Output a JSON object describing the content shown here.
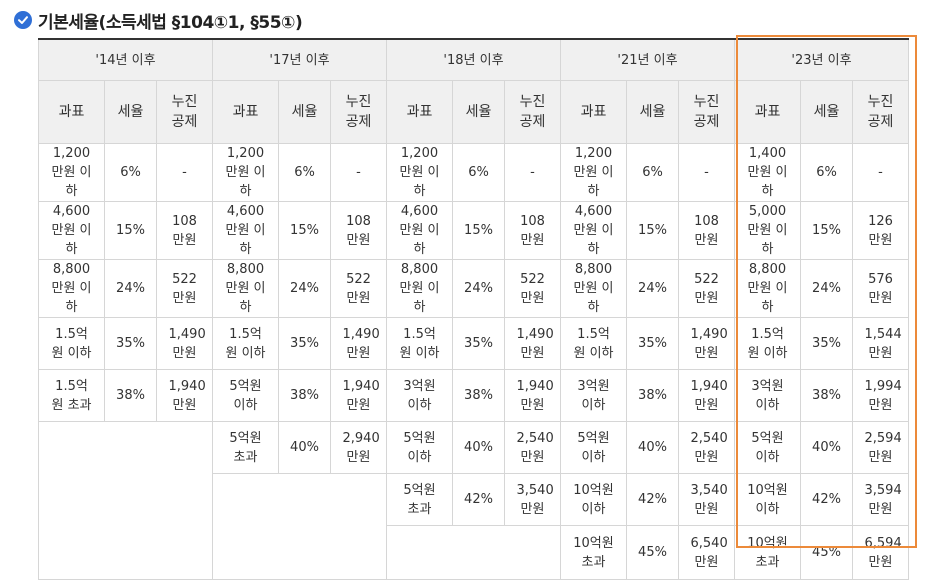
{
  "heading": {
    "text": "기본세율(소득세법 §104①1, §55①)"
  },
  "colors": {
    "accent": "#2f6fd6",
    "highlight": "#ec8a3a"
  },
  "table": {
    "periods": [
      "'14년 이후",
      "'17년 이후",
      "'18년 이후",
      "'21년 이후",
      "'23년 이후"
    ],
    "sub_headers": {
      "base": "과표",
      "rate": "세율",
      "deduction": "누진공제"
    },
    "columns": [
      {
        "brackets": [
          {
            "base": "1,200만원 이하",
            "rate": "6%",
            "deduction": "-"
          },
          {
            "base": "4,600만원 이하",
            "rate": "15%",
            "deduction": "108만원"
          },
          {
            "base": "8,800만원 이하",
            "rate": "24%",
            "deduction": "522만원"
          },
          {
            "base": "1.5억원 이하",
            "rate": "35%",
            "deduction": "1,490만원"
          },
          {
            "base": "1.5억원 초과",
            "rate": "38%",
            "deduction": "1,940만원"
          }
        ]
      },
      {
        "brackets": [
          {
            "base": "1,200만원 이하",
            "rate": "6%",
            "deduction": "-"
          },
          {
            "base": "4,600만원 이하",
            "rate": "15%",
            "deduction": "108만원"
          },
          {
            "base": "8,800만원 이하",
            "rate": "24%",
            "deduction": "522만원"
          },
          {
            "base": "1.5억원 이하",
            "rate": "35%",
            "deduction": "1,490만원"
          },
          {
            "base": "5억원 이하",
            "rate": "38%",
            "deduction": "1,940만원"
          },
          {
            "base": "5억원 초과",
            "rate": "40%",
            "deduction": "2,940만원"
          }
        ]
      },
      {
        "brackets": [
          {
            "base": "1,200만원 이하",
            "rate": "6%",
            "deduction": "-"
          },
          {
            "base": "4,600만원 이하",
            "rate": "15%",
            "deduction": "108만원"
          },
          {
            "base": "8,800만원 이하",
            "rate": "24%",
            "deduction": "522만원"
          },
          {
            "base": "1.5억원 이하",
            "rate": "35%",
            "deduction": "1,490만원"
          },
          {
            "base": "3억원 이하",
            "rate": "38%",
            "deduction": "1,940만원"
          },
          {
            "base": "5억원 이하",
            "rate": "40%",
            "deduction": "2,540만원"
          },
          {
            "base": "5억원 초과",
            "rate": "42%",
            "deduction": "3,540만원"
          }
        ]
      },
      {
        "brackets": [
          {
            "base": "1,200만원 이하",
            "rate": "6%",
            "deduction": "-"
          },
          {
            "base": "4,600만원 이하",
            "rate": "15%",
            "deduction": "108만원"
          },
          {
            "base": "8,800만원 이하",
            "rate": "24%",
            "deduction": "522만원"
          },
          {
            "base": "1.5억원 이하",
            "rate": "35%",
            "deduction": "1,490만원"
          },
          {
            "base": "3억원 이하",
            "rate": "38%",
            "deduction": "1,940만원"
          },
          {
            "base": "5억원 이하",
            "rate": "40%",
            "deduction": "2,540만원"
          },
          {
            "base": "10억원 이하",
            "rate": "42%",
            "deduction": "3,540만원"
          },
          {
            "base": "10억원 초과",
            "rate": "45%",
            "deduction": "6,540만원"
          }
        ]
      },
      {
        "brackets": [
          {
            "base": "1,400만원 이하",
            "rate": "6%",
            "deduction": "-"
          },
          {
            "base": "5,000만원 이하",
            "rate": "15%",
            "deduction": "126만원"
          },
          {
            "base": "8,800만원 이하",
            "rate": "24%",
            "deduction": "576만원"
          },
          {
            "base": "1.5억원 이하",
            "rate": "35%",
            "deduction": "1,544만원"
          },
          {
            "base": "3억원 이하",
            "rate": "38%",
            "deduction": "1,994만원"
          },
          {
            "base": "5억원 이하",
            "rate": "40%",
            "deduction": "2,594만원"
          },
          {
            "base": "10억원 이하",
            "rate": "42%",
            "deduction": "3,594만원"
          },
          {
            "base": "10억원 초과",
            "rate": "45%",
            "deduction": "6,594만원"
          }
        ]
      }
    ]
  }
}
